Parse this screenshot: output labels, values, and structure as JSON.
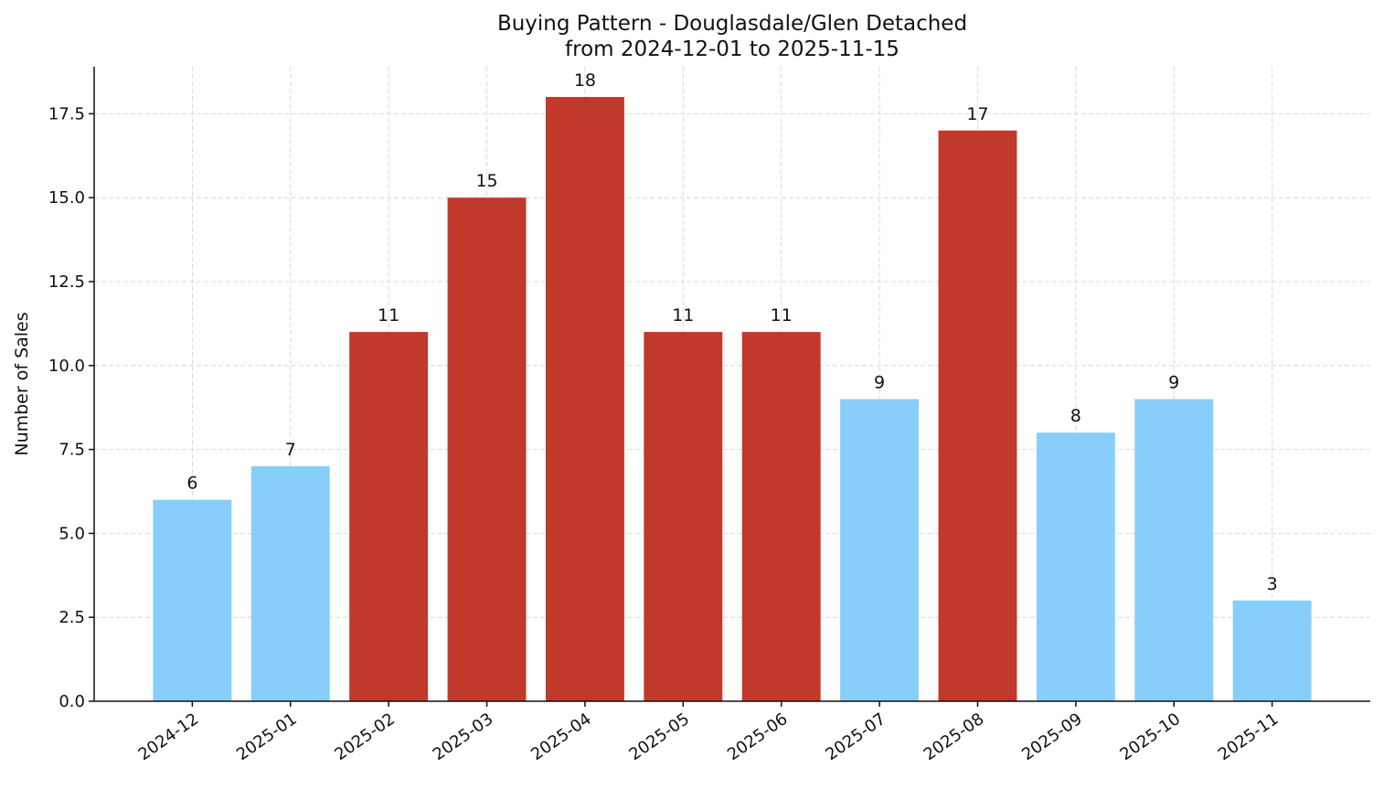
{
  "chart_data": {
    "type": "bar",
    "title": "Buying Pattern - Douglasdale/Glen Detached",
    "subtitle": "from 2024-12-01 to 2025-11-15",
    "y_label": "Number of Sales",
    "categories": [
      "2024-12",
      "2025-01",
      "2025-02",
      "2025-03",
      "2025-04",
      "2025-05",
      "2025-06",
      "2025-07",
      "2025-08",
      "2025-09",
      "2025-10",
      "2025-11"
    ],
    "values": [
      6,
      7,
      11,
      15,
      18,
      11,
      11,
      9,
      17,
      8,
      9,
      3
    ],
    "colors": [
      "#87cefa",
      "#87cefa",
      "#c0392b",
      "#c0392b",
      "#c0392b",
      "#c0392b",
      "#c0392b",
      "#87cefa",
      "#c0392b",
      "#87cefa",
      "#87cefa",
      "#87cefa"
    ],
    "ylim": [
      0,
      18.9
    ],
    "yticks": [
      {
        "value": 0,
        "label": "0.0"
      },
      2.5,
      {
        "value": 5,
        "label": "5.0"
      },
      7.5,
      {
        "value": 10,
        "label": "10.0"
      },
      12.5,
      {
        "value": 15,
        "label": "15.0"
      },
      17.5
    ],
    "grid": true
  }
}
